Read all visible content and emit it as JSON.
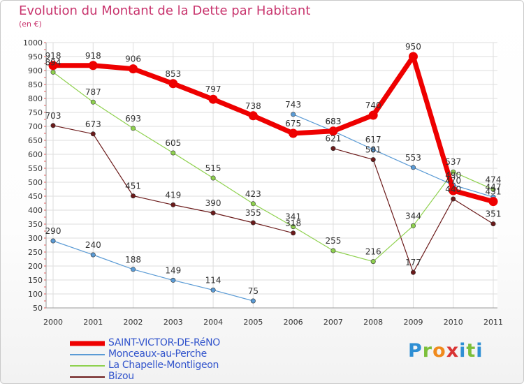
{
  "title": "Evolution du Montant de la Dette par Habitant",
  "subtitle": "(en €)",
  "logo_text": "Proxiti",
  "chart_data": {
    "type": "line",
    "categories": [
      "2000",
      "2001",
      "2002",
      "2003",
      "2004",
      "2005",
      "2006",
      "2007",
      "2008",
      "2009",
      "2010",
      "2011"
    ],
    "ylim": [
      50,
      1000
    ],
    "yticks": [
      50,
      100,
      150,
      200,
      250,
      300,
      350,
      400,
      450,
      500,
      550,
      600,
      650,
      700,
      750,
      800,
      850,
      900,
      950,
      1000
    ],
    "grid": true,
    "legend_position": "bottom-left",
    "series": [
      {
        "name": "SAINT-VICTOR-DE-RéNO",
        "color": "#ee0000",
        "width": 7,
        "values": [
          918,
          918,
          906,
          853,
          797,
          738,
          675,
          683,
          740,
          950,
          470,
          431
        ],
        "labels": [
          "918",
          "918",
          "906",
          "853",
          "797",
          "738",
          "675",
          "683",
          "740",
          "950",
          "470",
          "431"
        ]
      },
      {
        "name": "Monceaux-au-Perche",
        "color": "#5b9bd5",
        "width": 1.2,
        "values": [
          290,
          240,
          188,
          149,
          114,
          75,
          743,
          683,
          617,
          553,
          490,
          447
        ],
        "labels": [
          "290",
          "240",
          "188",
          "149",
          "114",
          "75",
          "743",
          "683",
          "617",
          "553",
          "490",
          "447"
        ],
        "break_after_index": 5
      },
      {
        "name": "La Chapelle-Montligeon",
        "color": "#8fd14f",
        "width": 1.2,
        "values": [
          894,
          787,
          693,
          605,
          515,
          423,
          341,
          255,
          216,
          344,
          537,
          474
        ],
        "labels": [
          "894",
          "787",
          "693",
          "605",
          "515",
          "423",
          "341",
          "255",
          "216",
          "344",
          "537",
          "474"
        ]
      },
      {
        "name": "Bizou",
        "color": "#6b1a1a",
        "width": 1.2,
        "values": [
          703,
          673,
          451,
          419,
          390,
          355,
          318,
          621,
          581,
          177,
          440,
          351
        ],
        "labels": [
          "703",
          "673",
          "451",
          "419",
          "390",
          "355",
          "318",
          "621",
          "581",
          "177",
          "440",
          "351"
        ],
        "break_after_index": 6
      }
    ]
  }
}
